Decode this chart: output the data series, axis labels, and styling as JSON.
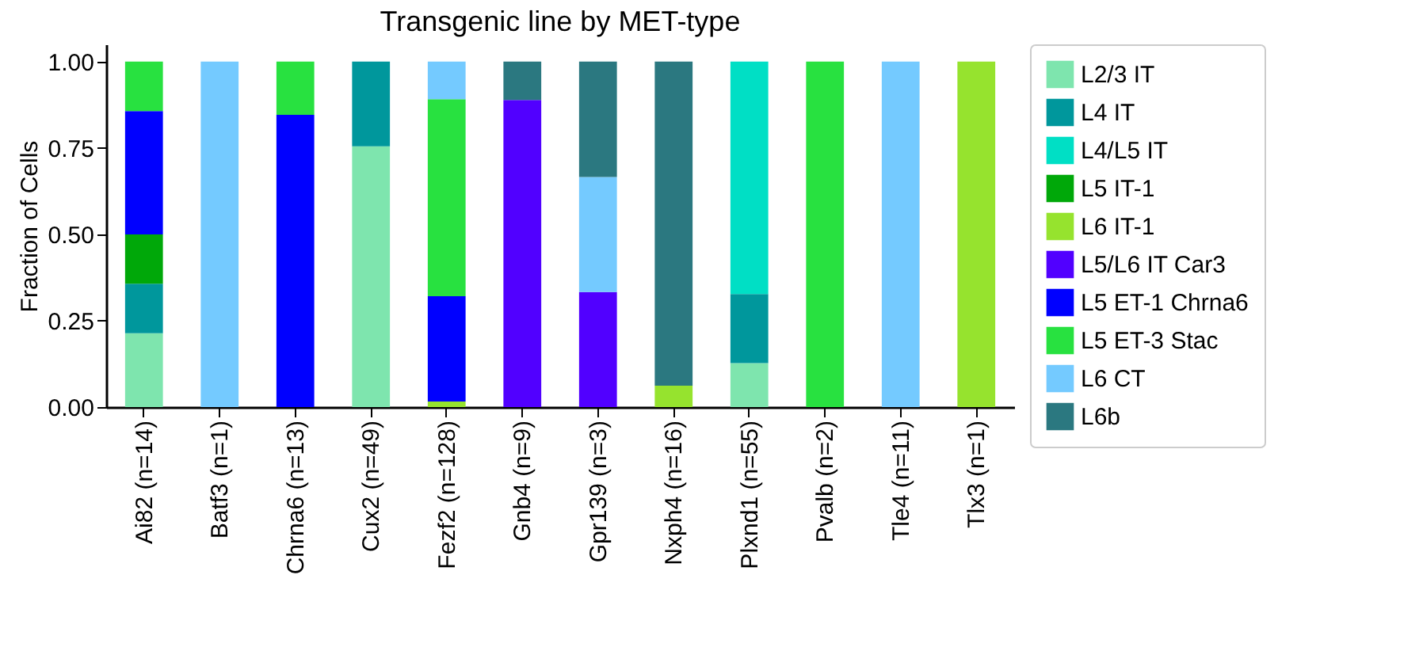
{
  "chart_data": {
    "type": "bar",
    "stacked": true,
    "title": "Transgenic line by MET-type",
    "ylabel": "Fraction of Cells",
    "categories": [
      "Ai82 (n=14)",
      "Batf3 (n=1)",
      "Chrna6 (n=13)",
      "Cux2 (n=49)",
      "Fezf2 (n=128)",
      "Gnb4 (n=9)",
      "Gpr139 (n=3)",
      "Nxph4 (n=16)",
      "Plxnd1 (n=55)",
      "Pvalb (n=2)",
      "Tle4 (n=11)",
      "Tlx3 (n=1)"
    ],
    "ylim": [
      0,
      1.05
    ],
    "yticks": [
      {
        "value": 0,
        "label": "0.00"
      },
      {
        "value": 0.25,
        "label": "0.25"
      },
      {
        "value": 0.5,
        "label": "0.50"
      },
      {
        "value": 0.75,
        "label": "0.75"
      },
      {
        "value": 1,
        "label": "1.00"
      }
    ],
    "grid": false,
    "legend": "right",
    "series": [
      {
        "name": "L2/3 IT",
        "color": "#7ee5ae",
        "values": [
          0.214,
          0,
          0,
          0.755,
          0,
          0,
          0,
          0,
          0.127,
          0,
          0,
          0
        ]
      },
      {
        "name": "L4 IT",
        "color": "#00979c",
        "values": [
          0.143,
          0,
          0,
          0.245,
          0,
          0,
          0,
          0,
          0.2,
          0,
          0,
          0
        ]
      },
      {
        "name": "L4/L5 IT",
        "color": "#00dfc5",
        "values": [
          0,
          0,
          0,
          0,
          0,
          0,
          0,
          0,
          0.673,
          0,
          0,
          0
        ]
      },
      {
        "name": "L5 IT-1",
        "color": "#00a809",
        "values": [
          0.143,
          0,
          0,
          0,
          0,
          0,
          0,
          0,
          0,
          0,
          0,
          0
        ]
      },
      {
        "name": "L6 IT-1",
        "color": "#96e32e",
        "values": [
          0,
          0,
          0,
          0,
          0.016,
          0,
          0,
          0.062,
          0,
          0,
          0,
          1
        ]
      },
      {
        "name": "L5/L6 IT Car3",
        "color": "#5100ff",
        "values": [
          0,
          0,
          0,
          0,
          0,
          0.889,
          0.333,
          0,
          0,
          0,
          0,
          0
        ]
      },
      {
        "name": "L5 ET-1 Chrna6",
        "color": "#0000ff",
        "values": [
          0.357,
          0,
          0.846,
          0,
          0.305,
          0,
          0,
          0,
          0,
          0,
          0,
          0
        ]
      },
      {
        "name": "L5 ET-3 Stac",
        "color": "#28e140",
        "values": [
          0.143,
          0,
          0.154,
          0,
          0.57,
          0,
          0,
          0,
          0,
          1,
          0,
          0
        ]
      },
      {
        "name": "L6 CT",
        "color": "#74caff",
        "values": [
          0,
          1,
          0,
          0,
          0.109,
          0,
          0.333,
          0,
          0,
          0,
          1,
          0
        ]
      },
      {
        "name": "L6b",
        "color": "#2b7880",
        "values": [
          0,
          0,
          0,
          0,
          0,
          0.111,
          0.334,
          0.938,
          0,
          0,
          0,
          0
        ]
      }
    ]
  }
}
